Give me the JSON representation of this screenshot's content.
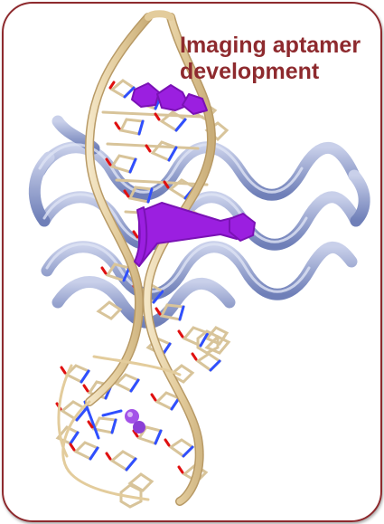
{
  "title": {
    "line1": "Imaging aptamer",
    "line2": "development"
  },
  "colors": {
    "border": "#8e2a2e",
    "title": "#8e2a2e",
    "protein_ribbon": "#a9b4d8",
    "rna_backbone": "#e6d2a8",
    "base_carbon": "#d8c49a",
    "nitrogen": "#2f4fff",
    "oxygen": "#e01010",
    "ligand": "#9b1fe0"
  },
  "illustration": {
    "description_icon": "protein-rna-complex-illustration"
  }
}
